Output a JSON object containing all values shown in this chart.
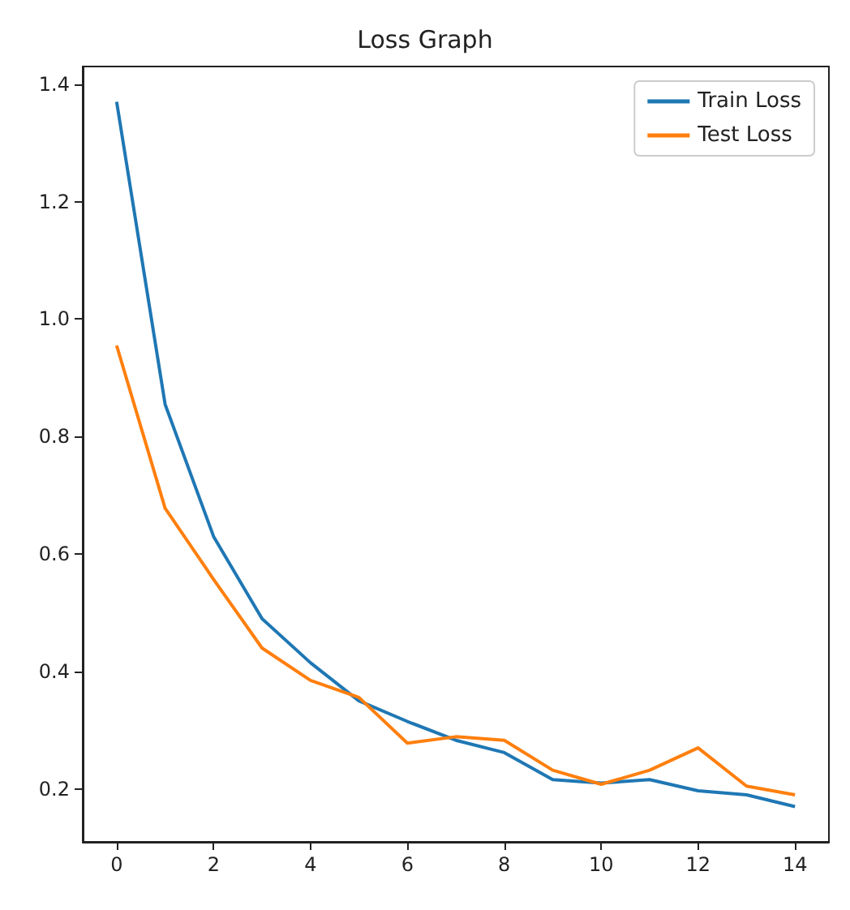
{
  "chart_data": {
    "type": "line",
    "title": "Loss Graph",
    "x": [
      0,
      1,
      2,
      3,
      4,
      5,
      6,
      7,
      8,
      9,
      10,
      11,
      12,
      13,
      14
    ],
    "series": [
      {
        "name": "Train Loss",
        "color": "#1f77b4",
        "values": [
          1.37,
          0.855,
          0.63,
          0.49,
          0.415,
          0.35,
          0.315,
          0.283,
          0.262,
          0.216,
          0.21,
          0.216,
          0.197,
          0.19,
          0.17
        ]
      },
      {
        "name": "Test Loss",
        "color": "#ff7f0e",
        "values": [
          0.955,
          0.678,
          0.557,
          0.44,
          0.385,
          0.356,
          0.278,
          0.289,
          0.283,
          0.232,
          0.208,
          0.232,
          0.27,
          0.205,
          0.19
        ]
      }
    ],
    "xlim": [
      -0.7,
      14.7
    ],
    "xticks": [
      0,
      2,
      4,
      6,
      8,
      10,
      12,
      14
    ],
    "ylim": [
      0.11,
      1.43
    ],
    "yticks": [
      0.2,
      0.4,
      0.6,
      0.8,
      {
        "value": 1,
        "label": "1.0"
      },
      1.2,
      1.4
    ],
    "grid": false,
    "legend": "top right",
    "marker": "none",
    "line_style": "solid"
  }
}
